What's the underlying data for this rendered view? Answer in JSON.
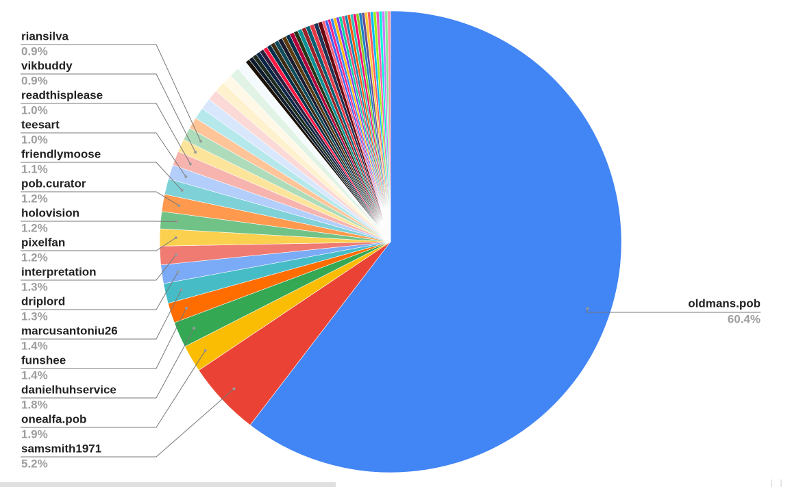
{
  "chart_data": {
    "type": "pie",
    "categories": [
      "oldmans.pob",
      "samsmith1971",
      "onealfa.pob",
      "danielhuhservice",
      "funshee",
      "marcusantoniu26",
      "driplord",
      "interpretation",
      "pixelfan",
      "holovision",
      "pob.curator",
      "friendlymoose",
      "teesart",
      "readthisplease",
      "vikbuddy",
      "riansilva",
      null,
      null,
      null,
      null,
      null,
      null,
      null,
      null,
      null,
      null,
      null,
      null,
      null,
      null,
      null,
      null,
      null,
      null,
      null,
      null,
      null,
      null,
      null,
      null,
      null,
      null,
      null,
      null,
      null,
      null,
      null,
      null,
      null,
      null,
      null,
      null,
      null,
      null,
      null,
      null,
      null,
      null,
      null,
      null,
      null,
      null,
      null,
      null,
      null,
      null,
      null,
      null
    ],
    "values": [
      60.4,
      5.2,
      1.9,
      1.8,
      1.4,
      1.4,
      1.3,
      1.3,
      1.2,
      1.2,
      1.2,
      1.1,
      1.0,
      1.0,
      0.9,
      0.9,
      0.8,
      0.8,
      0.8,
      0.75,
      0.75,
      0.7,
      0.7,
      0.7,
      0.3,
      0.3,
      0.3,
      0.3,
      0.3,
      0.3,
      0.3,
      0.3,
      0.3,
      0.3,
      0.3,
      0.3,
      0.3,
      0.3,
      0.3,
      0.3,
      0.3,
      0.3,
      0.3,
      0.3,
      0.2,
      0.2,
      0.2,
      0.2,
      0.2,
      0.2,
      0.2,
      0.2,
      0.2,
      0.2,
      0.2,
      0.2,
      0.2,
      0.2,
      0.2,
      0.2,
      0.2,
      0.2,
      0.2,
      0.2,
      0.2,
      0.2,
      0.2,
      0.2
    ],
    "value_labels": [
      "60.4%",
      "5.2%",
      "1.9%",
      "1.8%",
      "1.4%",
      "1.4%",
      "1.3%",
      "1.3%",
      "1.2%",
      "1.2%",
      "1.2%",
      "1.1%",
      "1.0%",
      "1.0%",
      "0.9%",
      "0.9%",
      null,
      null,
      null,
      null,
      null,
      null,
      null,
      null,
      null,
      null,
      null,
      null,
      null,
      null,
      null,
      null,
      null,
      null,
      null,
      null,
      null,
      null,
      null,
      null,
      null,
      null,
      null,
      null,
      null,
      null,
      null,
      null,
      null,
      null,
      null,
      null,
      null,
      null,
      null,
      null,
      null,
      null,
      null,
      null,
      null,
      null,
      null,
      null,
      null,
      null,
      null,
      null
    ],
    "colors": [
      "#4285f4",
      "#ea4335",
      "#fbbc04",
      "#34a853",
      "#ff6d01",
      "#46bdc6",
      "#7baaf7",
      "#f07b72",
      "#fcd04f",
      "#71c287",
      "#ff994d",
      "#7ed1d7",
      "#b3cefb",
      "#f7b4ae",
      "#fde49b",
      "#aedcba",
      "#ffc599",
      "#b5e8eb",
      "#d9e7fd",
      "#fbd9d6",
      "#fef1cd",
      "#fff8e6",
      "#e0f3e5",
      "#f5fbfc",
      "#1a1209",
      "#0d1b2a",
      "#1c2b1e",
      "#0b2447",
      "#2a1e3d",
      "#ff1744",
      "#003049",
      "#3d2c14",
      "#0f4c5c",
      "#1b1b2f",
      "#5c3c10",
      "#00334e",
      "#b3003c",
      "#283618",
      "#0a9396",
      "#9b2226",
      "#005f73",
      "#e63946",
      "#1d3557",
      "#6a040f",
      "#ff5e78",
      "#4361ee",
      "#f72585",
      "#3a86ff",
      "#ffbe0b",
      "#8338ec",
      "#06d6a0",
      "#ef476f",
      "#118ab2",
      "#fb5607",
      "#2ec4b6",
      "#ff006e",
      "#8ac926",
      "#1982c4",
      "#6a4c93",
      "#ffca3a",
      "#ff595e",
      "#00bbf9",
      "#9ef01a",
      "#f15bb5",
      "#00f5d4",
      "#c77dff",
      "#80ed99",
      "#ff8fab"
    ]
  }
}
